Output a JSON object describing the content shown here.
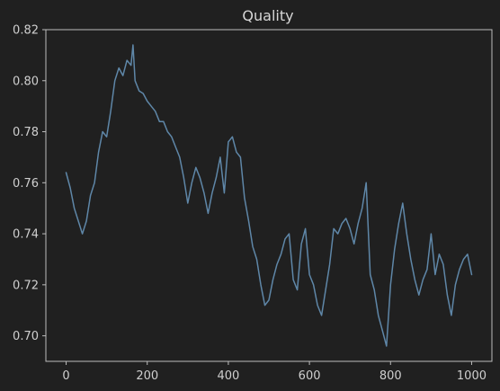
{
  "colors": {
    "background": "#202020",
    "axes": "#bdbdbd",
    "text": "#cfcfcf",
    "series": "#5f87a8"
  },
  "chart_data": {
    "type": "line",
    "title": "Quality",
    "xlabel": "",
    "ylabel": "",
    "xlim": [
      -50,
      1050
    ],
    "ylim": [
      0.69,
      0.82
    ],
    "xticks": [
      0,
      200,
      400,
      600,
      800,
      1000
    ],
    "xtick_labels": [
      "0",
      "200",
      "400",
      "600",
      "800",
      "1000"
    ],
    "yticks": [
      0.7,
      0.72,
      0.74,
      0.76,
      0.78,
      0.8,
      0.82
    ],
    "ytick_labels": [
      "0.70",
      "0.72",
      "0.74",
      "0.76",
      "0.78",
      "0.80",
      "0.82"
    ],
    "grid": false,
    "legend": "none",
    "series": [
      {
        "x": [
          0,
          10,
          20,
          30,
          40,
          50,
          60,
          70,
          80,
          90,
          100,
          110,
          120,
          130,
          140,
          150,
          160,
          165,
          170,
          180,
          190,
          200,
          210,
          220,
          230,
          240,
          250,
          260,
          270,
          280,
          290,
          300,
          310,
          320,
          330,
          340,
          350,
          360,
          370,
          380,
          390,
          400,
          410,
          420,
          430,
          440,
          450,
          460,
          470,
          480,
          490,
          500,
          510,
          520,
          530,
          540,
          550,
          560,
          570,
          580,
          590,
          600,
          610,
          620,
          630,
          640,
          650,
          660,
          670,
          680,
          690,
          700,
          710,
          720,
          730,
          740,
          750,
          760,
          770,
          780,
          790,
          800,
          810,
          820,
          830,
          840,
          850,
          860,
          870,
          880,
          890,
          900,
          910,
          920,
          930,
          940,
          950,
          960,
          970,
          980,
          990,
          1000
        ],
        "y": [
          0.764,
          0.758,
          0.75,
          0.745,
          0.74,
          0.745,
          0.755,
          0.76,
          0.772,
          0.78,
          0.778,
          0.788,
          0.8,
          0.805,
          0.802,
          0.808,
          0.806,
          0.814,
          0.8,
          0.796,
          0.795,
          0.792,
          0.79,
          0.788,
          0.784,
          0.784,
          0.78,
          0.778,
          0.774,
          0.77,
          0.762,
          0.752,
          0.76,
          0.766,
          0.762,
          0.756,
          0.748,
          0.756,
          0.762,
          0.77,
          0.756,
          0.776,
          0.778,
          0.772,
          0.77,
          0.754,
          0.745,
          0.735,
          0.73,
          0.72,
          0.712,
          0.714,
          0.722,
          0.728,
          0.732,
          0.738,
          0.74,
          0.722,
          0.718,
          0.736,
          0.742,
          0.724,
          0.72,
          0.712,
          0.708,
          0.718,
          0.728,
          0.742,
          0.74,
          0.744,
          0.746,
          0.742,
          0.736,
          0.744,
          0.75,
          0.76,
          0.724,
          0.718,
          0.708,
          0.702,
          0.696,
          0.72,
          0.734,
          0.744,
          0.752,
          0.74,
          0.73,
          0.722,
          0.716,
          0.722,
          0.726,
          0.74,
          0.724,
          0.732,
          0.728,
          0.716,
          0.708,
          0.72,
          0.726,
          0.73,
          0.732,
          0.724
        ]
      }
    ]
  }
}
